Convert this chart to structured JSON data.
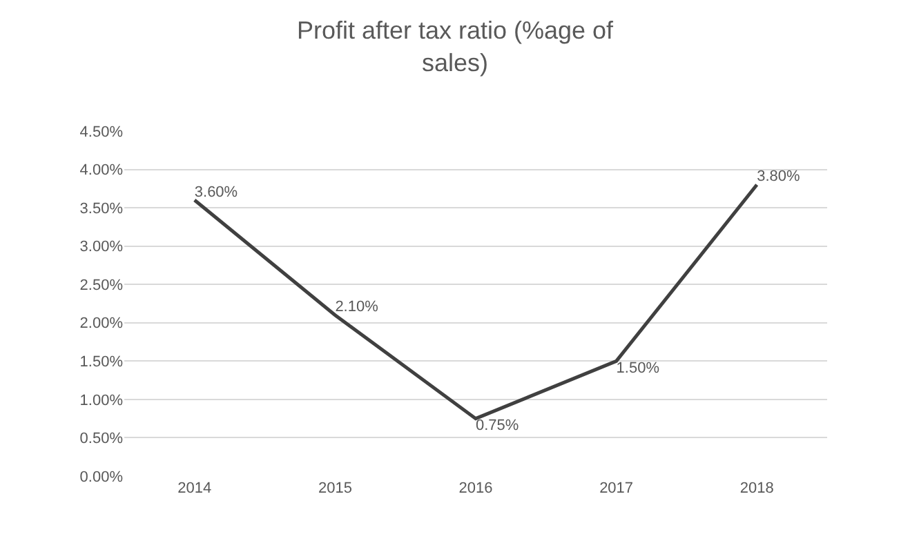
{
  "chart_data": {
    "type": "line",
    "title": "Profit after tax ratio (%age of sales)",
    "categories": [
      "2014",
      "2015",
      "2016",
      "2017",
      "2018"
    ],
    "series": [
      {
        "color": "#404040",
        "values": [
          3.6,
          2.1,
          0.75,
          1.5,
          3.8
        ],
        "value_labels": [
          "3.60%",
          "2.10%",
          "0.75%",
          "1.50%",
          "3.80%"
        ]
      }
    ],
    "ylim": [
      0,
      4.5
    ],
    "yticks": [
      {
        "value": 0,
        "label": "0.00%"
      },
      {
        "value": 0.5,
        "label": "0.50%"
      },
      {
        "value": 1,
        "label": "1.00%"
      },
      {
        "value": 1.5,
        "label": "1.50%"
      },
      {
        "value": 2,
        "label": "2.00%"
      },
      {
        "value": 2.5,
        "label": "2.50%"
      },
      {
        "value": 3,
        "label": "3.00%"
      },
      {
        "value": 3.5,
        "label": "3.50%"
      },
      {
        "value": 4,
        "label": "4.00%"
      },
      {
        "value": 4.5,
        "label": "4.50%"
      }
    ],
    "grid": "y",
    "marker": "none",
    "line_style": "solid"
  }
}
